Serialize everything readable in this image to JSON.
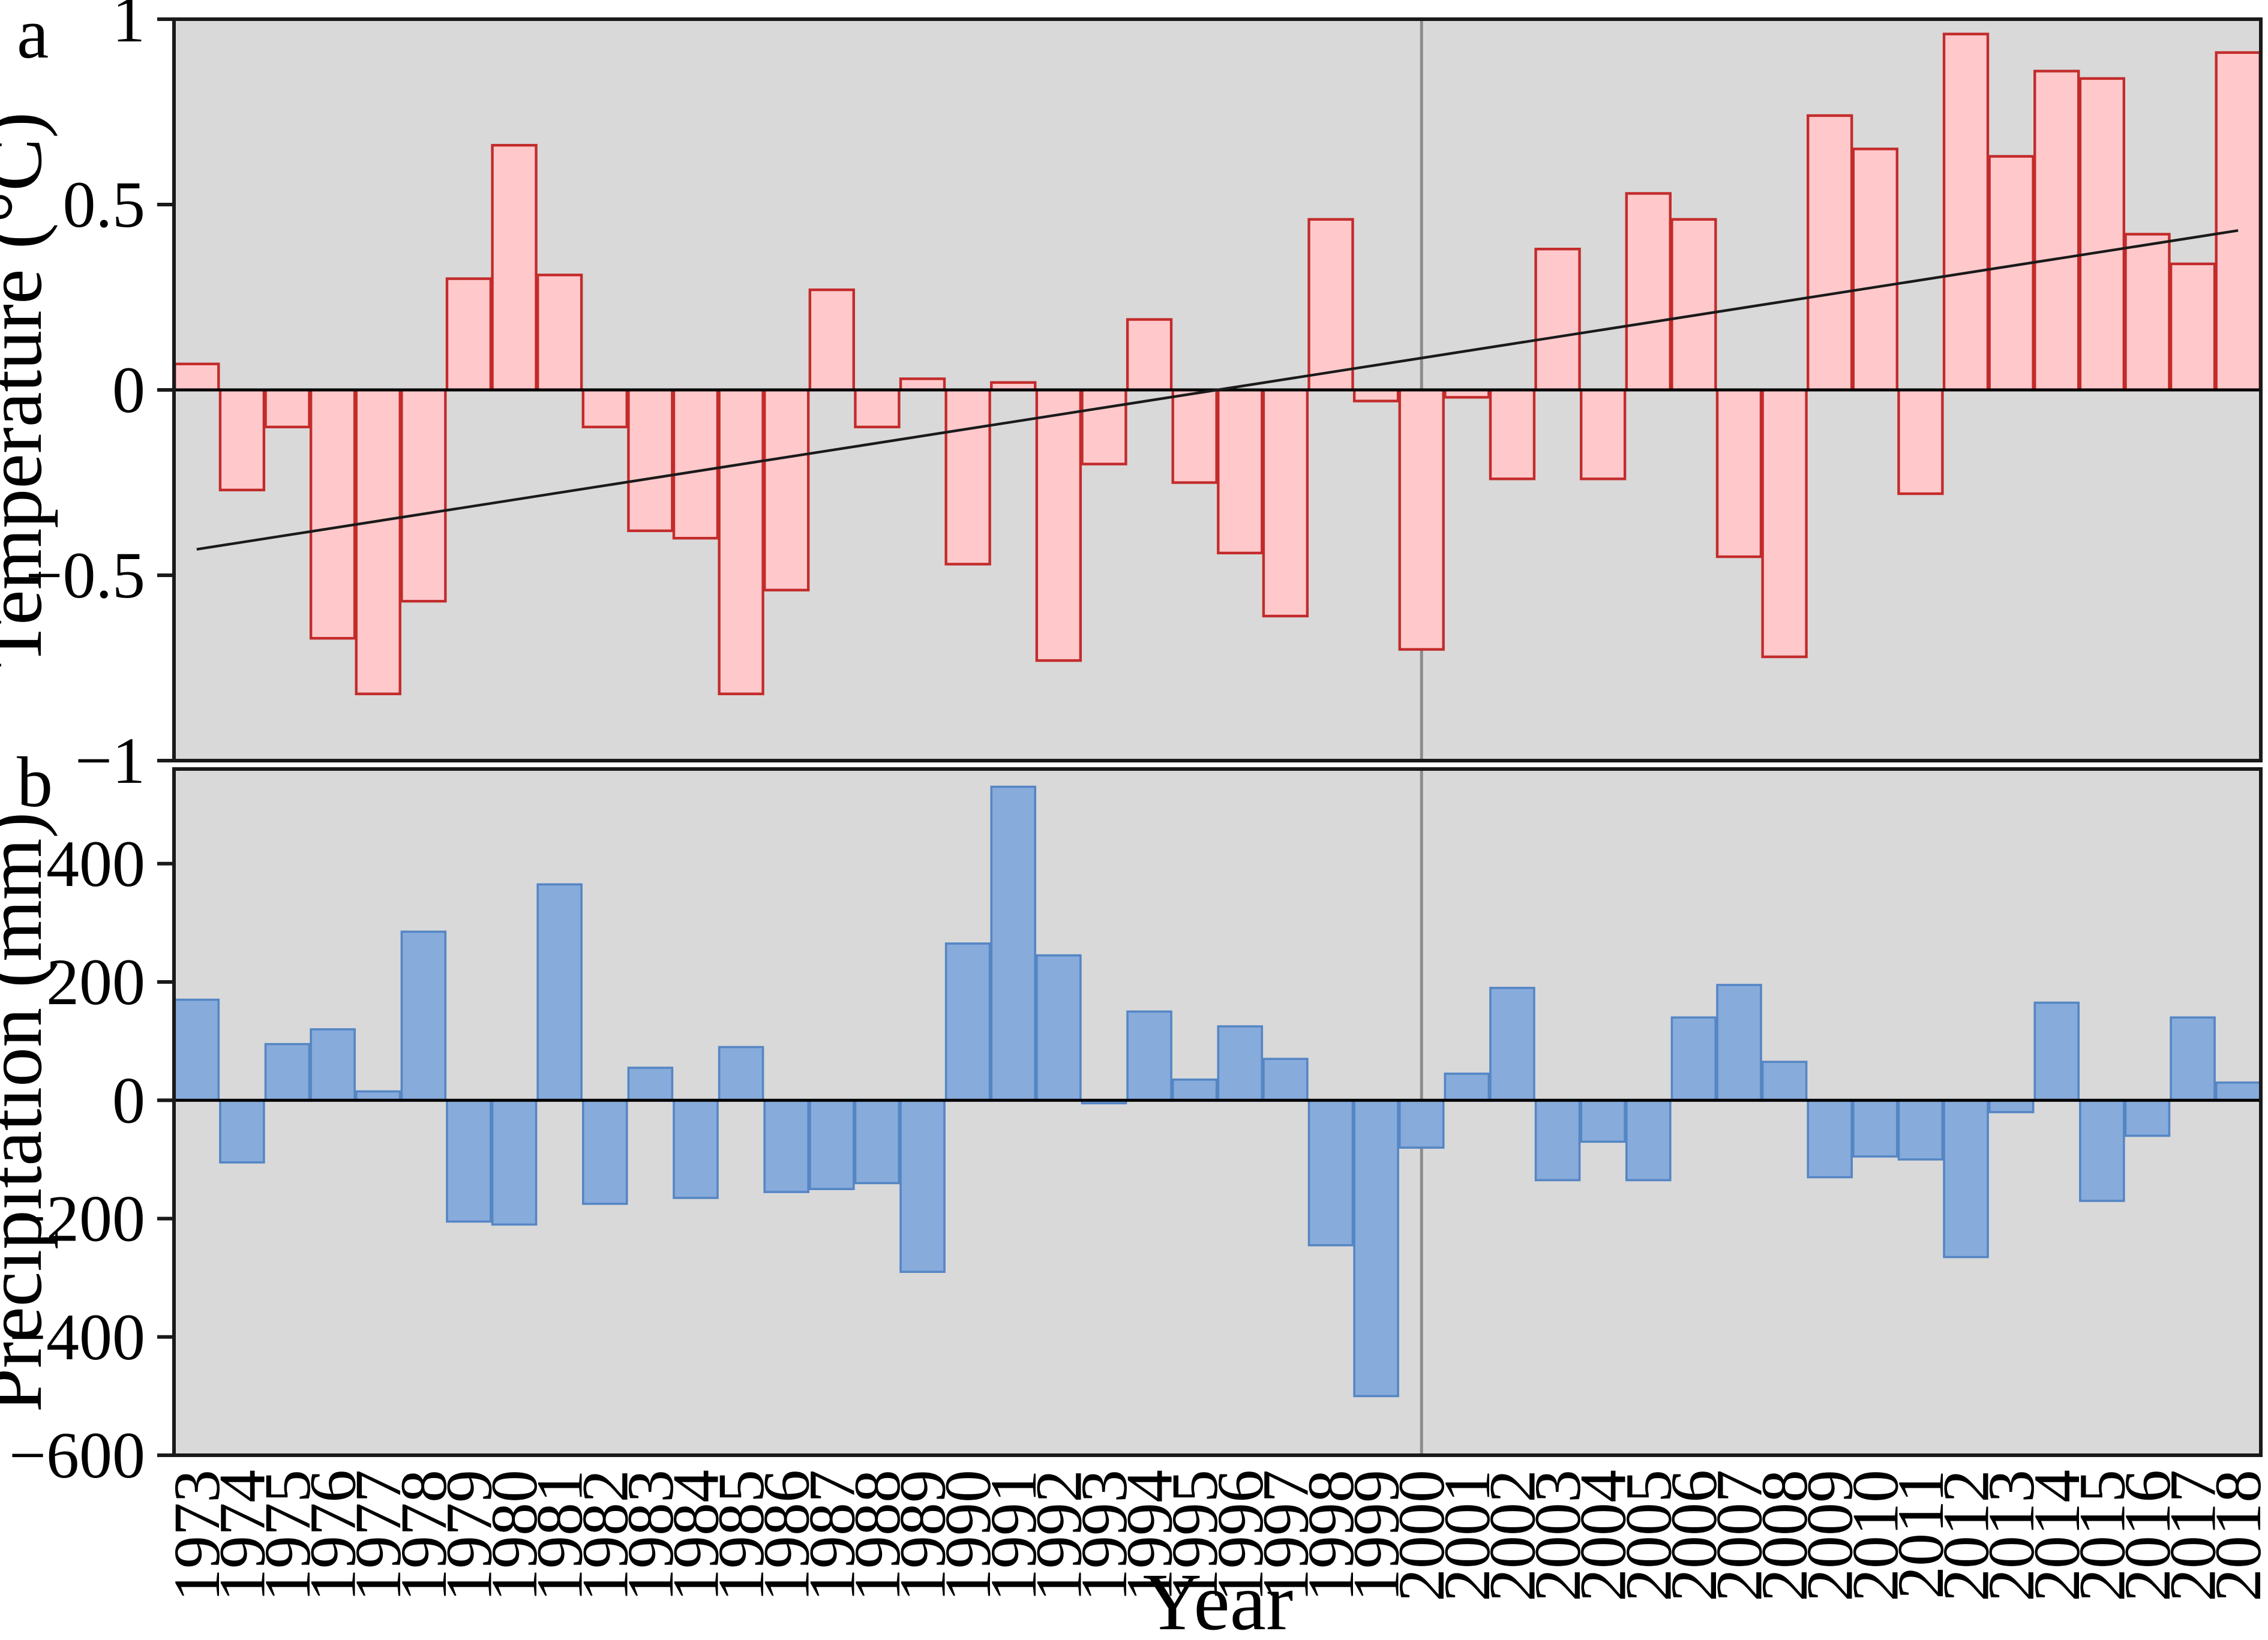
{
  "figure": {
    "panel_a_letter": "a",
    "panel_b_letter": "b",
    "x_axis_title": "Year",
    "colors": {
      "plot_background": "#d9d9d9",
      "frame": "#1a1a1a",
      "temperature_fill": "#ffc9cb",
      "temperature_stroke": "#c32b2b",
      "precipitation_fill": "#87abdb",
      "precipitation_stroke": "#5586c4",
      "reference_line": "#8c8c8c",
      "trend_line": "#1a1a1a",
      "zero_line": "#000000"
    }
  },
  "chart_data": [
    {
      "type": "bar",
      "panel": "a",
      "title": "",
      "ylabel": "Temperature (°C)",
      "xlabel": "Year",
      "ylim": [
        -1,
        1
      ],
      "yticks": [
        {
          "value": 1,
          "label": "1"
        },
        {
          "value": 0.5,
          "label": "0.5"
        },
        {
          "value": 0,
          "label": "0"
        },
        {
          "value": -0.5,
          "label": "−0.5"
        },
        {
          "value": -1,
          "label": "−1"
        }
      ],
      "categories": [
        1973,
        1974,
        1975,
        1976,
        1977,
        1978,
        1979,
        1980,
        1981,
        1982,
        1983,
        1984,
        1985,
        1986,
        1987,
        1988,
        1989,
        1990,
        1991,
        1992,
        1993,
        1994,
        1995,
        1996,
        1997,
        1998,
        1999,
        2000,
        2001,
        2002,
        2003,
        2004,
        2005,
        2006,
        2007,
        2008,
        2009,
        2010,
        2011,
        2012,
        2013,
        2014,
        2015,
        2016,
        2017,
        2018
      ],
      "values": [
        0.07,
        -0.27,
        -0.1,
        -0.67,
        -0.82,
        -0.57,
        0.3,
        0.66,
        0.31,
        -0.1,
        -0.38,
        -0.4,
        -0.82,
        -0.54,
        0.27,
        -0.1,
        0.03,
        -0.47,
        0.02,
        -0.73,
        -0.2,
        0.19,
        -0.25,
        -0.44,
        -0.61,
        0.46,
        -0.03,
        -0.7,
        -0.02,
        -0.24,
        0.38,
        -0.24,
        0.53,
        0.46,
        -0.45,
        -0.72,
        0.74,
        0.65,
        -0.28,
        0.96,
        0.63,
        0.86,
        0.84,
        0.42,
        0.34,
        0.91
      ],
      "trend_line": {
        "start_year": 1973,
        "start_value": -0.43,
        "end_year": 2018,
        "end_value": 0.43
      },
      "reference_line_year": 2000,
      "grid": false,
      "legend": "none"
    },
    {
      "type": "bar",
      "panel": "b",
      "title": "",
      "ylabel": "Precipitation (mm)",
      "xlabel": "Year",
      "ylim": [
        -600,
        560
      ],
      "yticks": [
        {
          "value": 400,
          "label": "400"
        },
        {
          "value": 200,
          "label": "200"
        },
        {
          "value": 0,
          "label": "0"
        },
        {
          "value": -200,
          "label": "−200"
        },
        {
          "value": -400,
          "label": "−400"
        },
        {
          "value": -600,
          "label": "−600"
        }
      ],
      "categories": [
        1973,
        1974,
        1975,
        1976,
        1977,
        1978,
        1979,
        1980,
        1981,
        1982,
        1983,
        1984,
        1985,
        1986,
        1987,
        1988,
        1989,
        1990,
        1991,
        1992,
        1993,
        1994,
        1995,
        1996,
        1997,
        1998,
        1999,
        2000,
        2001,
        2002,
        2003,
        2004,
        2005,
        2006,
        2007,
        2008,
        2009,
        2010,
        2011,
        2012,
        2013,
        2014,
        2015,
        2016,
        2017,
        2018
      ],
      "values": [
        170,
        -105,
        95,
        120,
        15,
        285,
        -205,
        -210,
        365,
        -175,
        55,
        -165,
        90,
        -155,
        -150,
        -140,
        -290,
        265,
        530,
        245,
        -5,
        150,
        35,
        125,
        70,
        -245,
        -500,
        -80,
        45,
        190,
        -135,
        -70,
        -135,
        140,
        195,
        65,
        -130,
        -95,
        -100,
        -265,
        -20,
        165,
        -170,
        -60,
        140,
        30
      ],
      "reference_line_year": 2000,
      "grid": false,
      "legend": "none"
    }
  ]
}
